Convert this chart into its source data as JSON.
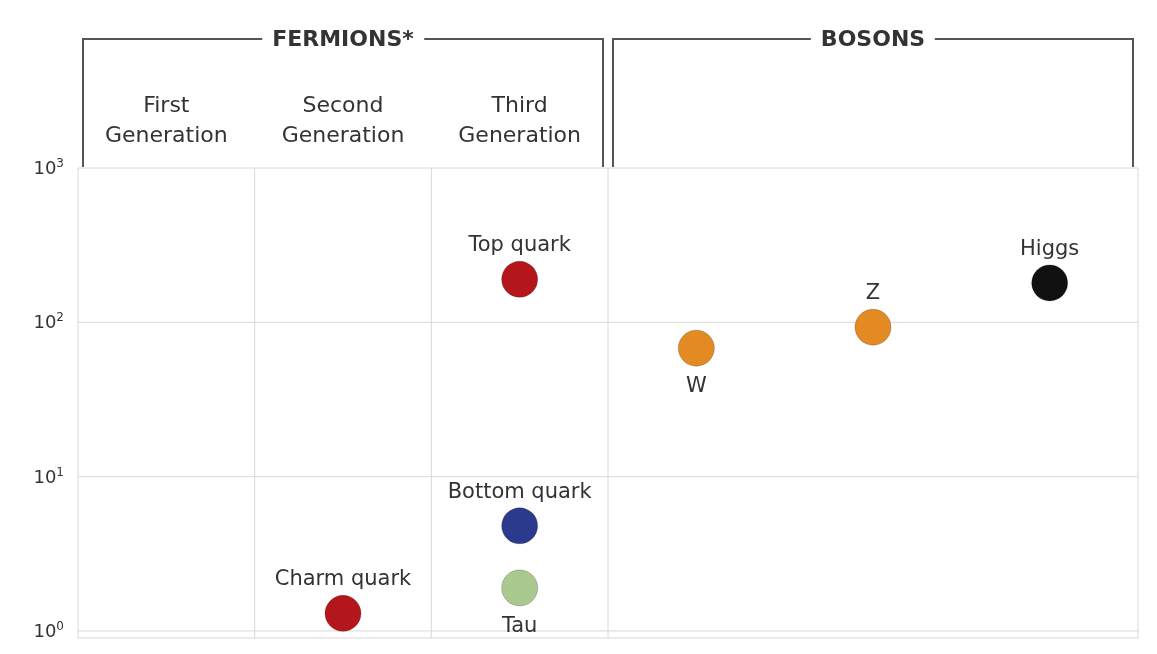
{
  "chart_data": {
    "type": "scatter",
    "categories": [
      "First Generation",
      "Second Generation",
      "Third Generation",
      null,
      null,
      null
    ],
    "series": [
      {
        "name": "Charm quark",
        "color": "#b5161b",
        "values": [
          null,
          1.3,
          null,
          null,
          null,
          null
        ]
      },
      {
        "name": "Tau",
        "color": "#a9c98f",
        "values": [
          null,
          null,
          1.9,
          null,
          null,
          null
        ]
      },
      {
        "name": "Bottom quark",
        "color": "#2b3a8c",
        "values": [
          null,
          null,
          4.8,
          null,
          null,
          null
        ]
      },
      {
        "name": "Top quark",
        "color": "#b5161b",
        "values": [
          null,
          null,
          190,
          null,
          null,
          null
        ]
      },
      {
        "name": "W",
        "color": "#e38b22",
        "values": [
          null,
          null,
          null,
          68,
          null,
          null
        ]
      },
      {
        "name": "Z",
        "color": "#e38b22",
        "values": [
          null,
          null,
          null,
          null,
          93,
          null
        ]
      },
      {
        "name": "Higgs",
        "color": "#111111",
        "values": [
          null,
          null,
          null,
          null,
          null,
          180
        ]
      }
    ],
    "log": "y",
    "ylim": [
      0.9,
      1000
    ],
    "yticks": [
      {
        "value": 1,
        "label": "10$^{0}$"
      },
      {
        "value": 10,
        "label": "10$^{1}$"
      },
      {
        "value": 100,
        "label": "10$^{2}$"
      },
      {
        "value": 1000,
        "label": "10$^{3}$"
      }
    ],
    "grid": true,
    "marker": "circle",
    "annotations": [
      "FERMIONS*",
      "BOSONS"
    ]
  }
}
